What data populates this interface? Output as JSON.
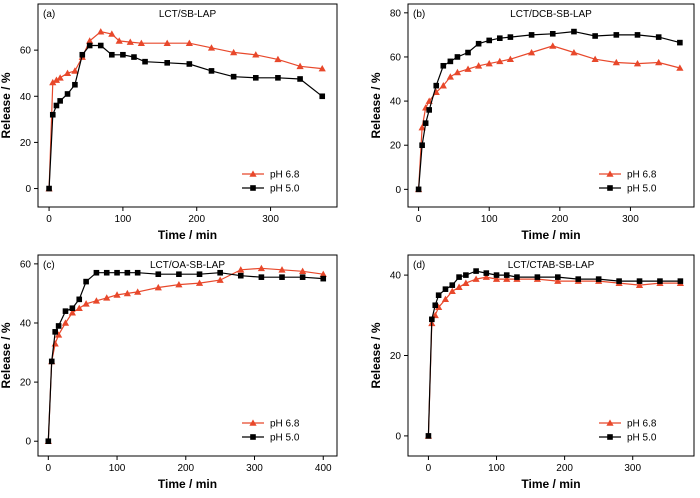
{
  "colors": {
    "red": "#e8482b",
    "black": "#000000"
  },
  "chart_data": [
    {
      "type": "line",
      "panel_label": "(a)",
      "title": "LCT/SB-LAP",
      "xlabel": "Time / min",
      "ylabel": "Release / %",
      "xlim": [
        -15,
        390
      ],
      "ylim": [
        -8,
        80
      ],
      "xticks": [
        0,
        100,
        200,
        300
      ],
      "yticks": [
        0,
        20,
        40,
        60
      ],
      "legend_position": "lower-right",
      "series": [
        {
          "name": "pH 6.8",
          "marker": "triangle",
          "color": "#e8482b",
          "x": [
            0,
            5,
            10,
            15,
            25,
            35,
            45,
            55,
            70,
            85,
            95,
            110,
            125,
            160,
            190,
            220,
            250,
            280,
            310,
            340,
            370
          ],
          "y": [
            0,
            46,
            47,
            48,
            50,
            51,
            57,
            64,
            68,
            67,
            64,
            63.5,
            63,
            63,
            63,
            61,
            59,
            58,
            56,
            53,
            52
          ]
        },
        {
          "name": "pH 5.0",
          "marker": "square",
          "color": "#000000",
          "x": [
            0,
            5,
            10,
            15,
            25,
            35,
            45,
            55,
            70,
            85,
            100,
            115,
            130,
            160,
            190,
            220,
            250,
            280,
            310,
            340,
            370
          ],
          "y": [
            0,
            32,
            36,
            38,
            41,
            45,
            58,
            62,
            62,
            58,
            58,
            57,
            55,
            54.5,
            54,
            51,
            48.5,
            48,
            48,
            47.5,
            40
          ]
        }
      ]
    },
    {
      "type": "line",
      "panel_label": "(b)",
      "title": "LCT/DCB-SB-LAP",
      "xlabel": "Time / min",
      "ylabel": "Release / %",
      "xlim": [
        -15,
        390
      ],
      "ylim": [
        -8,
        84
      ],
      "xticks": [
        0,
        100,
        200,
        300
      ],
      "yticks": [
        0,
        20,
        40,
        60,
        80
      ],
      "legend_position": "lower-right",
      "series": [
        {
          "name": "pH 6.8",
          "marker": "triangle",
          "color": "#e8482b",
          "x": [
            0,
            5,
            10,
            15,
            25,
            35,
            45,
            55,
            70,
            85,
            100,
            115,
            130,
            160,
            190,
            220,
            250,
            280,
            310,
            340,
            370
          ],
          "y": [
            0,
            28,
            37,
            40,
            44,
            47,
            51,
            53,
            54.5,
            56,
            57,
            58,
            59,
            62,
            65,
            62,
            59,
            57.5,
            57,
            57.5,
            55
          ]
        },
        {
          "name": "pH 5.0",
          "marker": "square",
          "color": "#000000",
          "x": [
            0,
            5,
            10,
            15,
            25,
            35,
            45,
            55,
            70,
            85,
            100,
            115,
            130,
            160,
            190,
            220,
            250,
            280,
            310,
            340,
            370
          ],
          "y": [
            0,
            20,
            30,
            36,
            47,
            56,
            58,
            60,
            62,
            66,
            67.5,
            68.5,
            69,
            70,
            70.5,
            71.5,
            69.5,
            70,
            70,
            69,
            66.5
          ]
        }
      ]
    },
    {
      "type": "line",
      "panel_label": "(c)",
      "title": "LCT/OA-SB-LAP",
      "xlabel": "Time / min",
      "ylabel": "Release / %",
      "xlim": [
        -15,
        420
      ],
      "ylim": [
        -5,
        63
      ],
      "xticks": [
        0,
        100,
        200,
        300,
        400
      ],
      "yticks": [
        0,
        20,
        40,
        60
      ],
      "legend_position": "lower-right",
      "series": [
        {
          "name": "pH 6.8",
          "marker": "triangle",
          "color": "#e8482b",
          "x": [
            0,
            5,
            10,
            15,
            25,
            35,
            45,
            55,
            70,
            85,
            100,
            115,
            130,
            160,
            190,
            220,
            250,
            280,
            310,
            340,
            370,
            400
          ],
          "y": [
            0,
            27,
            33,
            36,
            40,
            43.5,
            45,
            46.5,
            47.5,
            48.5,
            49.5,
            50,
            50.5,
            52,
            53,
            53.5,
            54.5,
            58,
            58.5,
            58,
            57.5,
            56.5
          ]
        },
        {
          "name": "pH 5.0",
          "marker": "square",
          "color": "#000000",
          "x": [
            0,
            5,
            10,
            15,
            25,
            35,
            45,
            55,
            70,
            85,
            100,
            115,
            130,
            160,
            190,
            220,
            250,
            280,
            310,
            340,
            370,
            400
          ],
          "y": [
            0,
            27,
            37,
            39,
            44,
            45,
            48,
            54,
            57,
            57,
            57,
            57,
            57,
            56.5,
            56.5,
            56.5,
            57,
            56,
            55.5,
            55.5,
            55.5,
            55
          ]
        }
      ]
    },
    {
      "type": "line",
      "panel_label": "(d)",
      "title": "LCT/CTAB-SB-LAP",
      "xlabel": "Time / min",
      "ylabel": "Release / %",
      "xlim": [
        -30,
        390
      ],
      "ylim": [
        -5,
        45
      ],
      "xticks": [
        0,
        100,
        200,
        300
      ],
      "yticks": [
        0,
        20,
        40
      ],
      "legend_position": "lower-right",
      "series": [
        {
          "name": "pH 6.8",
          "marker": "triangle",
          "color": "#e8482b",
          "x": [
            0,
            5,
            10,
            15,
            25,
            35,
            45,
            55,
            70,
            85,
            100,
            115,
            130,
            160,
            190,
            220,
            250,
            280,
            310,
            340,
            370
          ],
          "y": [
            0,
            28,
            30,
            32,
            34,
            36,
            37,
            38,
            39,
            39.5,
            39,
            39,
            39,
            39,
            38.5,
            38.5,
            38.5,
            38,
            37.5,
            38,
            38
          ]
        },
        {
          "name": "pH 5.0",
          "marker": "square",
          "color": "#000000",
          "x": [
            0,
            5,
            10,
            15,
            25,
            35,
            45,
            55,
            70,
            85,
            100,
            115,
            130,
            160,
            190,
            220,
            250,
            280,
            310,
            340,
            370
          ],
          "y": [
            0,
            29,
            32.5,
            35,
            36.5,
            37.5,
            39.5,
            40,
            41,
            40.5,
            40,
            40,
            39.5,
            39.5,
            39.5,
            39,
            39,
            38.5,
            38.5,
            38.5,
            38.5
          ]
        }
      ]
    }
  ]
}
